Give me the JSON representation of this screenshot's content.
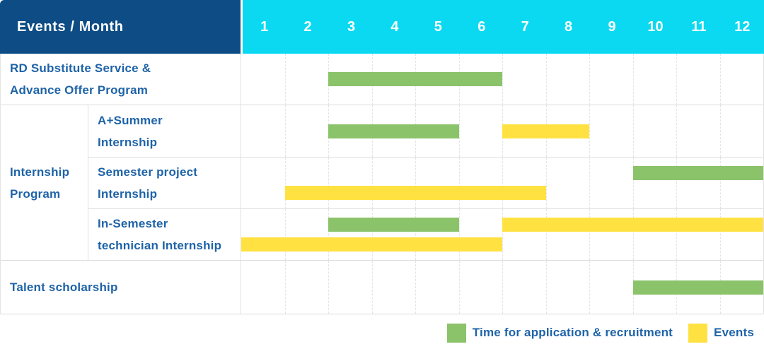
{
  "header": {
    "title": "Events / Month",
    "months": [
      "1",
      "2",
      "3",
      "4",
      "5",
      "6",
      "7",
      "8",
      "9",
      "10",
      "11",
      "12"
    ]
  },
  "colors": {
    "header_bg": "#0D4C84",
    "months_bg": "#0BD9F1",
    "bar_green": "#8BC36A",
    "bar_yellow": "#FFE242",
    "label_text": "#1E63A8"
  },
  "chart_data": {
    "type": "gantt",
    "unit": "month",
    "axis": {
      "min": 1,
      "max": 12
    },
    "sections": [
      {
        "type": "row",
        "label_lines": [
          "RD Substitute Service &",
          "Advance Offer Program"
        ],
        "lanes": [
          [
            {
              "color": "green",
              "start": 3,
              "end": 7
            }
          ]
        ]
      },
      {
        "type": "group",
        "label_lines": [
          "Internship",
          "Program"
        ],
        "rows": [
          {
            "label_lines": [
              "A+Summer",
              "Internship"
            ],
            "lanes": [
              [
                {
                  "color": "green",
                  "start": 3,
                  "end": 6
                },
                {
                  "color": "yellow",
                  "start": 7,
                  "end": 9
                }
              ]
            ]
          },
          {
            "label_lines": [
              "Semester project",
              "Internship"
            ],
            "lanes": [
              [
                {
                  "color": "green",
                  "start": 10,
                  "end": 13
                }
              ],
              [
                {
                  "color": "yellow",
                  "start": 2,
                  "end": 8
                }
              ]
            ]
          },
          {
            "label_lines": [
              "In-Semester",
              "technician Internship"
            ],
            "lanes": [
              [
                {
                  "color": "green",
                  "start": 3,
                  "end": 6
                },
                {
                  "color": "yellow",
                  "start": 7,
                  "end": 13
                }
              ],
              [
                {
                  "color": "yellow",
                  "start": 1,
                  "end": 7
                }
              ]
            ]
          }
        ]
      },
      {
        "type": "row",
        "label_lines": [
          "Talent scholarship"
        ],
        "lanes": [
          [
            {
              "color": "green",
              "start": 10,
              "end": 13
            }
          ]
        ]
      }
    ]
  },
  "legend": [
    {
      "color": "green",
      "label": "Time for application & recruitment"
    },
    {
      "color": "yellow",
      "label": "Events"
    }
  ]
}
